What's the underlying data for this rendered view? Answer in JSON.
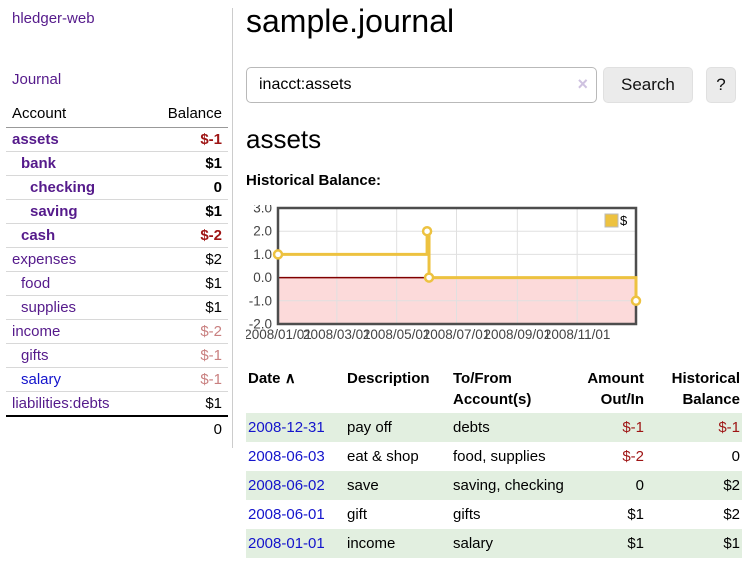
{
  "colors": {
    "accent_purple": "#551a8b",
    "link_blue": "#1414cc",
    "negative_strong": "#9e1414",
    "negative_soft": "#c98080",
    "row_stripe_green": "#e2efe0",
    "series_yellow": "#edc240"
  },
  "sidebar": {
    "brand": "hledger-web",
    "nav_journal": "Journal",
    "accounts": {
      "headers": {
        "account": "Account",
        "balance": "Balance"
      },
      "rows": [
        {
          "name": "assets",
          "depth": 1,
          "bold": true,
          "link": "purple",
          "balance": "$-1",
          "balance_class": "neg"
        },
        {
          "name": "bank",
          "depth": 2,
          "bold": true,
          "link": "purple",
          "balance": "$1",
          "balance_class": ""
        },
        {
          "name": "checking",
          "depth": 3,
          "bold": true,
          "link": "purple",
          "balance": "0",
          "balance_class": ""
        },
        {
          "name": "saving",
          "depth": 3,
          "bold": true,
          "link": "purple",
          "balance": "$1",
          "balance_class": ""
        },
        {
          "name": "cash",
          "depth": 2,
          "bold": true,
          "link": "purple",
          "balance": "$-2",
          "balance_class": "neg"
        },
        {
          "name": "expenses",
          "depth": 1,
          "bold": false,
          "link": "purple",
          "balance": "$2",
          "balance_class": ""
        },
        {
          "name": "food",
          "depth": 2,
          "bold": false,
          "link": "purple",
          "balance": "$1",
          "balance_class": ""
        },
        {
          "name": "supplies",
          "depth": 2,
          "bold": false,
          "link": "purple",
          "balance": "$1",
          "balance_class": ""
        },
        {
          "name": "income",
          "depth": 1,
          "bold": false,
          "link": "purple",
          "balance": "$-2",
          "balance_class": "negsoft"
        },
        {
          "name": "gifts",
          "depth": 2,
          "bold": false,
          "link": "purple",
          "balance": "$-1",
          "balance_class": "negsoft"
        },
        {
          "name": "salary",
          "depth": 2,
          "bold": false,
          "link": "blue",
          "balance": "$-1",
          "balance_class": "negsoft"
        },
        {
          "name": "liabilities:debts",
          "depth": 1,
          "bold": false,
          "link": "purple",
          "balance": "$1",
          "balance_class": ""
        }
      ],
      "total": "0"
    }
  },
  "main": {
    "title": "sample.journal",
    "search": {
      "value": "inacct:assets",
      "clear_icon": "×",
      "search_button": "Search",
      "help_button": "?"
    },
    "account_heading": "assets",
    "chart_label": "Historical Balance:"
  },
  "chart_data": {
    "type": "line",
    "step": true,
    "title": "Historical Balance",
    "xlabel": "",
    "ylabel": "",
    "xlim": [
      "2008-01-01",
      "2008-12-31"
    ],
    "ylim": [
      -2,
      3
    ],
    "grid": true,
    "grid_color": "#e0e0e0",
    "border_color": "#4d4d4d",
    "tick_color": "#444444",
    "zero_line_color": "#800000",
    "negative_region_fill": "#fcdada",
    "legend": {
      "label": "$",
      "position": "ne"
    },
    "y_ticks": [
      3,
      2,
      1,
      0,
      -1,
      -2
    ],
    "x_ticks": [
      {
        "date": "2008-01-01",
        "label": "2008/01/01"
      },
      {
        "date": "2008-03-01",
        "label": "2008/03/01"
      },
      {
        "date": "2008-05-01",
        "label": "2008/05/01"
      },
      {
        "date": "2008-07-01",
        "label": "2008/07/01"
      },
      {
        "date": "2008-09-01",
        "label": "2008/09/01"
      },
      {
        "date": "2008-11-01",
        "label": "2008/11/01"
      }
    ],
    "series": [
      {
        "name": "$",
        "color": "#edc240",
        "points": [
          [
            "2008-01-01",
            1
          ],
          [
            "2008-06-01",
            2
          ],
          [
            "2008-06-03",
            0
          ],
          [
            "2008-12-31",
            -1
          ]
        ]
      }
    ]
  },
  "register": {
    "headers": {
      "date": "Date",
      "sort_icon": "∧",
      "description": "Description",
      "tofrom": "To/From\nAccount(s)",
      "amount": "Amount\nOut/In",
      "balance": "Historical\nBalance"
    },
    "rows": [
      {
        "date": "2008-12-31",
        "description": "pay off",
        "accounts": "debts",
        "amount": "$-1",
        "amount_neg": true,
        "balance": "$-1",
        "balance_neg": true
      },
      {
        "date": "2008-06-03",
        "description": "eat & shop",
        "accounts": "food, supplies",
        "amount": "$-2",
        "amount_neg": true,
        "balance": "0",
        "balance_neg": false
      },
      {
        "date": "2008-06-02",
        "description": "save",
        "accounts": "saving, checking",
        "amount": "0",
        "amount_neg": false,
        "balance": "$2",
        "balance_neg": false
      },
      {
        "date": "2008-06-01",
        "description": "gift",
        "accounts": "gifts",
        "amount": "$1",
        "amount_neg": false,
        "balance": "$2",
        "balance_neg": false
      },
      {
        "date": "2008-01-01",
        "description": "income",
        "accounts": "salary",
        "amount": "$1",
        "amount_neg": false,
        "balance": "$1",
        "balance_neg": false
      }
    ]
  }
}
